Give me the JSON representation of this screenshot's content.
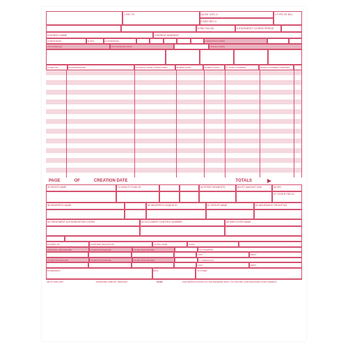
{
  "form": {
    "title": "UB-04 CMS-1450",
    "colors": {
      "border": "#d4506e",
      "accent_fill": "#e8b3c0",
      "stripe": "#f5d8df",
      "stripe_alt": "#ffffff",
      "text": "#c03050",
      "page_bar_bg": "#ffffff"
    },
    "header": {
      "provider_box": "",
      "pay_to": "2 PAY TO",
      "pat_cntl": "3a PAT CNTL #",
      "med_rec": "b MED REC #",
      "type_bill": "4 TYPE OF BILL",
      "fed_tax": "5 FED TAX NO",
      "statement": "6 STATEMENT COVERS PERIOD",
      "from": "FROM",
      "through": "THROUGH"
    },
    "patient": {
      "name_label": "8 PATIENT NAME",
      "address_label": "9 PATIENT ADDRESS",
      "birthdate": "10 BIRTHDATE",
      "sex": "11 SEX",
      "admission": "12 ADMISSION",
      "date": "DATE",
      "hr": "13 HR",
      "type": "14 TYPE",
      "src": "15 SRC",
      "dhr": "16 DHR",
      "stat": "17 STAT",
      "condition_codes": "CONDITION CODES",
      "acdt_state": "29 ACDT STATE",
      "occurrence": "OCCURRENCE",
      "occurrence_span": "OCCURRENCE SPAN",
      "code": "CODE",
      "value_codes": "VALUE CODES",
      "amount": "AMOUNT"
    },
    "service_lines": {
      "rev_cd": "42 REV CD",
      "description": "43 DESCRIPTION",
      "hcpcs": "44 HCPCS / RATE / HIPPS CODE",
      "serv_date": "45 SERV DATE",
      "serv_units": "46 SERV UNITS",
      "total_charges": "47 TOTAL CHARGES",
      "noncov": "48 NON-COVERED CHARGES",
      "row_count": 22
    },
    "page_bar": {
      "page": "PAGE",
      "of": "OF",
      "creation": "CREATION DATE",
      "totals": "TOTALS"
    },
    "payer": {
      "payer_name": "50 PAYER NAME",
      "health_plan": "51 HEALTH PLAN ID",
      "rel_info": "52 REL INFO",
      "asg_ben": "53 ASG BEN",
      "prior_pay": "54 PRIOR PAYMENTS",
      "est_amt": "55 EST AMOUNT DUE",
      "npi": "56 NPI",
      "other_prv": "57 OTHER PRV ID",
      "insured_name": "58 INSURED'S NAME",
      "p_rel": "59 P REL",
      "insured_id": "60 INSURED'S UNIQUE ID",
      "group_name": "61 GROUP NAME",
      "ins_group": "62 INSURANCE GROUP NO",
      "treat_auth": "63 TREATMENT AUTHORIZATION CODES",
      "doc_ctrl": "64 DOCUMENT CONTROL NUMBER",
      "employer": "65 EMPLOYER NAME"
    },
    "dx": {
      "dx_label": "66 DX",
      "admit_dx": "69 ADMIT DX",
      "patient_reason": "70 PATIENT REASON DX",
      "pps_code": "71 PPS CODE",
      "eci": "72 ECI",
      "principal_proc": "PRINCIPAL PROCEDURE",
      "other_proc": "OTHER PROCEDURE",
      "code_date": "CODE          DATE",
      "attending": "76 ATTENDING",
      "operating": "77 OPERATING",
      "other1": "78 OTHER",
      "other2": "79 OTHER",
      "npi_lbl": "NPI",
      "qual": "QUAL",
      "last": "LAST",
      "first": "FIRST",
      "remarks": "80 REMARKS",
      "cc": "81CC"
    },
    "footer": {
      "form_id": "UB-04 CMS-1450",
      "approved": "APPROVED OMB NO. 0938-0997",
      "nubc": "NUBC",
      "cert": "THE CERTIFICATIONS ON THE REVERSE APPLY TO THIS BILL AND ARE MADE A PART HEREOF"
    }
  }
}
